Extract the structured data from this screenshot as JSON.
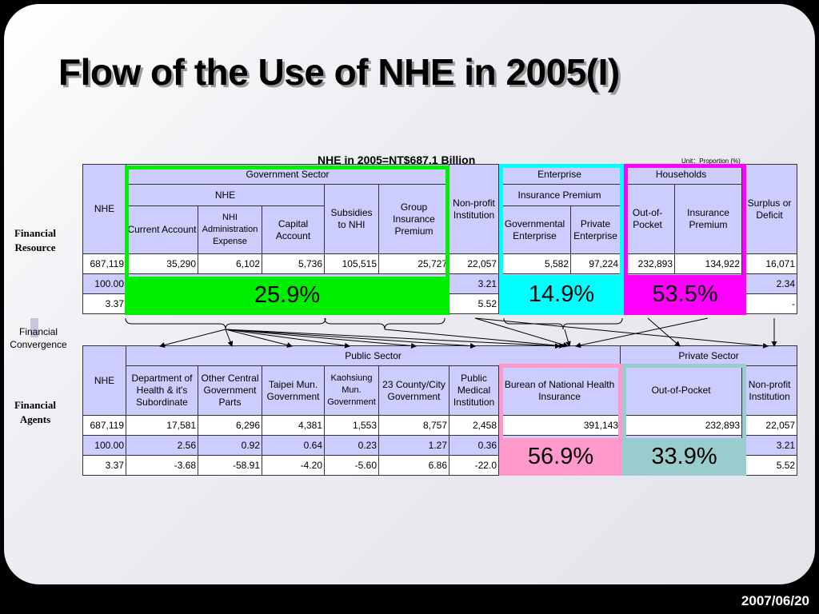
{
  "title": "Flow of the Use of NHE in 2005(I)",
  "table1_caption": "NHE in 2005=NT$687.1 Billion",
  "unit_note": "Unit：Proportion (%)",
  "side_labels": {
    "resource": "Financial Resource",
    "convergence": "Financial Convergence",
    "agents": "Financial Agents"
  },
  "table1": {
    "nhe": "NHE",
    "government_sector": "Government Sector",
    "enterprise": "Enterprise",
    "households": "Households",
    "gov_nhe": "NHE",
    "insurance_premium": "Insurance Premium",
    "non_profit": "Non-profit Institution",
    "surplus": "Surplus or Deficit",
    "subsidies": "Subsidies to NHI",
    "group_insurance": "Group Insurance Premium",
    "current_account": "Current Account",
    "nhi_admin": "NHI Administration Expense",
    "capital_account": "Capital Account",
    "gov_enterprise": "Governmental Enterprise",
    "private_enterprise": "Private Enterprise",
    "out_of_pocket": "Out-of-Pocket",
    "hh_insurance": "Insurance Premium",
    "rows": [
      [
        "687,119",
        "35,290",
        "6,102",
        "5,736",
        "105,515",
        "25,727",
        "22,057",
        "5,582",
        "97,224",
        "232,893",
        "134,922",
        "16,071"
      ],
      [
        "100.00",
        "",
        "",
        "",
        "",
        "",
        "3.21",
        "",
        "",
        "",
        "",
        "2.34"
      ],
      [
        "3.37",
        "",
        "",
        "",
        "",
        "",
        "5.52",
        "",
        "",
        "",
        "",
        "-"
      ]
    ]
  },
  "table2": {
    "nhe": "NHE",
    "public_sector": "Public Sector",
    "private_sector": "Private Sector",
    "doh": "Department of Health & it's Subordinate",
    "other_central": "Other Central Government Parts",
    "taipei": "Taipei Mun. Government",
    "kaohsiung": "Kaohsiung Mun. Government",
    "county": "23 County/City Government",
    "public_medical": "Public Medical Institution",
    "bnhi": "Burean of National Health Insurance",
    "out_of_pocket": "Out-of-Pocket",
    "non_profit": "Non-profit Institution",
    "rows": [
      [
        "687,119",
        "17,581",
        "6,296",
        "4,381",
        "1,553",
        "8,757",
        "2,458",
        "391,143",
        "232,893",
        "22,057"
      ],
      [
        "100.00",
        "2.56",
        "0.92",
        "0.64",
        "0.23",
        "1.27",
        "0.36",
        "",
        "",
        "3.21"
      ],
      [
        "3.37",
        "-3.68",
        "-58.91",
        "-4.20",
        "-5.60",
        "6.86",
        "-22.0",
        "",
        "",
        "5.52"
      ]
    ]
  },
  "highlights": {
    "government": {
      "label": "25.9%",
      "color": "#00ee00"
    },
    "enterprise": {
      "label": "14.9%",
      "color": "#00ffff"
    },
    "households": {
      "label": "53.5%",
      "color": "#ff00ff"
    },
    "bnhi": {
      "label": "56.9%",
      "color": "#ff99cc"
    },
    "out_of_pocket": {
      "label": "33.9%",
      "color": "#99cccc"
    }
  },
  "footer_date": "2007/06/20"
}
